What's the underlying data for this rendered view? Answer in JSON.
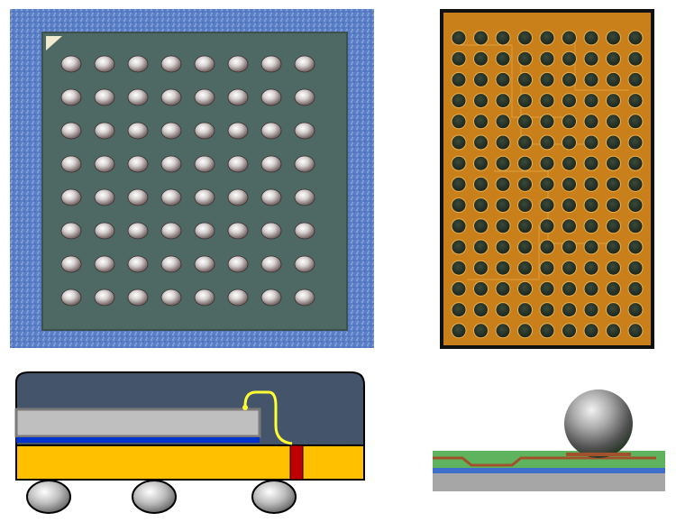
{
  "figure": {
    "panels": [
      {
        "id": "bga-top-photo",
        "description_name": "bga-package-top-view",
        "ball_rows": 8,
        "ball_cols": 8
      },
      {
        "id": "bga-xray-photo",
        "description_name": "bga-substrate-xray-view",
        "ball_rows": 15,
        "ball_cols": 9
      },
      {
        "id": "bga-cross-section",
        "description_name": "bga-cross-section-diagram",
        "balls": 3
      },
      {
        "id": "solder-ball-detail",
        "description_name": "solder-ball-cross-section-detail"
      }
    ],
    "colors": {
      "photo_background_blue": "#5b7fc7",
      "package_green_gray": "#4e6864",
      "substrate_orange": "#c9801a",
      "mold_compound": "#44546a",
      "die_gray": "#bfbfbf",
      "substrate_yellow": "#ffc000",
      "trace_blue": "#0033cc",
      "via_red": "#c00000",
      "wire_yellow": "#ffff33",
      "pcb_green": "#5fb35f",
      "copper_brown": "#a0522d"
    }
  }
}
